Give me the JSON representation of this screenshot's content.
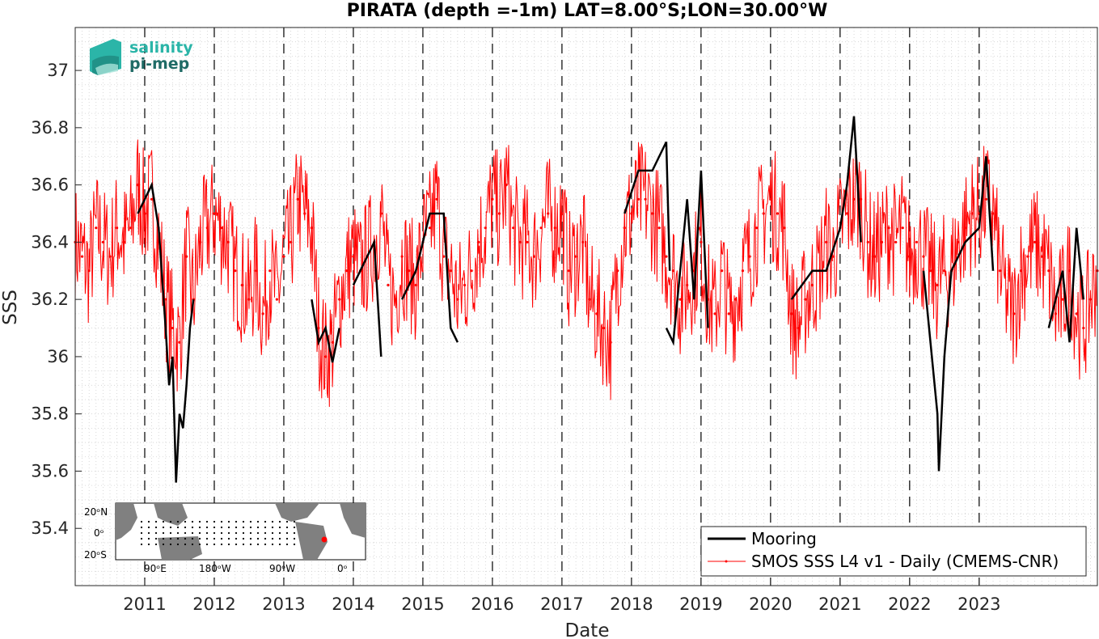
{
  "chart_data": {
    "type": "line",
    "title": "PIRATA (depth =-1m) LAT=8.00°S;LON=30.00°W",
    "xlabel": "Date",
    "ylabel": "SSS",
    "x_tick_labels": [
      "2011",
      "2012",
      "2013",
      "2014",
      "2015",
      "2016",
      "2017",
      "2018",
      "2019",
      "2020",
      "2021",
      "2022",
      "2023"
    ],
    "xlim": [
      2010.0,
      2024.7
    ],
    "y_ticks": [
      35.4,
      35.6,
      35.8,
      36,
      36.2,
      36.4,
      36.6,
      36.8,
      37
    ],
    "ylim": [
      35.2,
      37.15
    ],
    "grid": "minor dotted",
    "year_markers": [
      2011,
      2012,
      2013,
      2014,
      2015,
      2016,
      2017,
      2018,
      2019,
      2020,
      2021,
      2022,
      2023
    ],
    "legend_position": "bottom-right",
    "colors": {
      "mooring": "#000000",
      "smos": "#ff0000",
      "map_land": "#808080"
    },
    "series": [
      {
        "name": "Mooring",
        "color": "#000000",
        "segments": [
          {
            "x": [
              2010.9,
              2011.0,
              2011.1,
              2011.2,
              2011.3,
              2011.35,
              2011.4,
              2011.45,
              2011.5,
              2011.55,
              2011.6,
              2011.65,
              2011.7
            ],
            "y": [
              36.5,
              36.55,
              36.6,
              36.45,
              36.1,
              35.9,
              36.0,
              35.56,
              35.8,
              35.75,
              35.9,
              36.1,
              36.2
            ]
          },
          {
            "x": [
              2013.4,
              2013.5,
              2013.6,
              2013.7,
              2013.8
            ],
            "y": [
              36.2,
              36.05,
              36.1,
              35.98,
              36.1
            ]
          },
          {
            "x": [
              2014.0,
              2014.1,
              2014.2,
              2014.3,
              2014.4
            ],
            "y": [
              36.25,
              36.3,
              36.35,
              36.4,
              36.0
            ]
          },
          {
            "x": [
              2014.7,
              2014.9,
              2015.1,
              2015.3,
              2015.4,
              2015.5
            ],
            "y": [
              36.2,
              36.3,
              36.5,
              36.5,
              36.1,
              36.05
            ]
          },
          {
            "x": [
              2017.9,
              2018.1,
              2018.3,
              2018.5,
              2018.55
            ],
            "y": [
              36.5,
              36.65,
              36.65,
              36.75,
              36.3
            ]
          },
          {
            "x": [
              2018.5,
              2018.6,
              2018.7,
              2018.8,
              2018.9,
              2019.0,
              2019.1
            ],
            "y": [
              36.1,
              36.05,
              36.3,
              36.55,
              36.2,
              36.65,
              36.1
            ]
          },
          {
            "x": [
              2020.3,
              2020.6,
              2020.8,
              2021.0,
              2021.1,
              2021.2,
              2021.3
            ],
            "y": [
              36.2,
              36.3,
              36.3,
              36.45,
              36.6,
              36.84,
              36.4
            ]
          },
          {
            "x": [
              2022.2,
              2022.4,
              2022.42,
              2022.5,
              2022.6,
              2022.8,
              2023.0,
              2023.1,
              2023.2
            ],
            "y": [
              36.3,
              35.8,
              35.6,
              36.0,
              36.3,
              36.4,
              36.45,
              36.7,
              36.3
            ]
          },
          {
            "x": [
              2024.0,
              2024.2,
              2024.3,
              2024.4,
              2024.5
            ],
            "y": [
              36.1,
              36.3,
              36.05,
              36.45,
              36.2
            ]
          }
        ]
      },
      {
        "name": "SMOS SSS L4 v1 - Daily (CMEMS-CNR)",
        "color": "#ff0000",
        "x": [
          2010.0,
          2010.1,
          2010.2,
          2010.3,
          2010.4,
          2010.5,
          2010.6,
          2010.7,
          2010.8,
          2010.9,
          2011.0,
          2011.1,
          2011.2,
          2011.3,
          2011.4,
          2011.5,
          2011.6,
          2011.7,
          2011.8,
          2011.9,
          2012.0,
          2012.1,
          2012.2,
          2012.3,
          2012.4,
          2012.5,
          2012.6,
          2012.7,
          2012.8,
          2012.9,
          2013.0,
          2013.1,
          2013.2,
          2013.3,
          2013.4,
          2013.5,
          2013.6,
          2013.7,
          2013.8,
          2013.9,
          2014.0,
          2014.1,
          2014.2,
          2014.3,
          2014.4,
          2014.5,
          2014.6,
          2014.7,
          2014.8,
          2014.9,
          2015.0,
          2015.1,
          2015.2,
          2015.3,
          2015.4,
          2015.5,
          2015.6,
          2015.7,
          2015.8,
          2015.9,
          2016.0,
          2016.1,
          2016.2,
          2016.3,
          2016.4,
          2016.5,
          2016.6,
          2016.7,
          2016.8,
          2016.9,
          2017.0,
          2017.1,
          2017.2,
          2017.3,
          2017.4,
          2017.5,
          2017.6,
          2017.7,
          2017.8,
          2017.9,
          2018.0,
          2018.1,
          2018.2,
          2018.3,
          2018.4,
          2018.5,
          2018.6,
          2018.7,
          2018.8,
          2018.9,
          2019.0,
          2019.1,
          2019.2,
          2019.3,
          2019.4,
          2019.5,
          2019.6,
          2019.7,
          2019.8,
          2019.9,
          2020.0,
          2020.1,
          2020.2,
          2020.3,
          2020.4,
          2020.5,
          2020.6,
          2020.7,
          2020.8,
          2020.9,
          2021.0,
          2021.1,
          2021.2,
          2021.3,
          2021.4,
          2021.5,
          2021.6,
          2021.7,
          2021.8,
          2021.9,
          2022.0,
          2022.1,
          2022.2,
          2022.3,
          2022.4,
          2022.5,
          2022.6,
          2022.7,
          2022.8,
          2022.9,
          2023.0,
          2023.1,
          2023.2,
          2023.3,
          2023.4,
          2023.5,
          2023.6,
          2023.7,
          2023.8,
          2023.9,
          2024.0,
          2024.1,
          2024.2,
          2024.3,
          2024.4,
          2024.5,
          2024.6,
          2024.7
        ],
        "y": [
          36.4,
          36.35,
          36.3,
          36.45,
          36.4,
          36.35,
          36.45,
          36.4,
          36.45,
          36.6,
          36.5,
          36.55,
          36.4,
          36.2,
          36.1,
          36.05,
          36.35,
          36.2,
          36.4,
          36.45,
          36.5,
          36.45,
          36.4,
          36.3,
          36.25,
          36.2,
          36.3,
          36.15,
          36.3,
          36.2,
          36.35,
          36.4,
          36.55,
          36.5,
          36.45,
          36.1,
          36.0,
          36.05,
          36.2,
          36.3,
          36.35,
          36.3,
          36.35,
          36.4,
          36.5,
          36.25,
          36.2,
          36.35,
          36.3,
          36.25,
          36.4,
          36.45,
          36.55,
          36.35,
          36.3,
          36.2,
          36.25,
          36.3,
          36.4,
          36.45,
          36.55,
          36.5,
          36.6,
          36.45,
          36.4,
          36.4,
          36.35,
          36.45,
          36.5,
          36.45,
          36.5,
          36.3,
          36.35,
          36.4,
          36.2,
          36.15,
          36.1,
          36.05,
          36.3,
          36.45,
          36.5,
          36.55,
          36.55,
          36.5,
          36.45,
          36.35,
          36.3,
          36.2,
          36.25,
          36.3,
          36.4,
          36.2,
          36.15,
          36.3,
          36.15,
          36.2,
          36.3,
          36.35,
          36.45,
          36.5,
          36.55,
          36.5,
          36.45,
          36.15,
          36.1,
          36.2,
          36.25,
          36.3,
          36.4,
          36.35,
          36.45,
          36.5,
          36.55,
          36.55,
          36.4,
          36.35,
          36.4,
          36.45,
          36.4,
          36.45,
          36.35,
          36.4,
          36.35,
          36.3,
          36.25,
          36.3,
          36.3,
          36.4,
          36.45,
          36.5,
          36.5,
          36.55,
          36.5,
          36.3,
          36.2,
          36.15,
          36.3,
          36.35,
          36.4,
          36.35,
          36.3,
          36.15,
          36.2,
          36.3,
          36.15,
          36.1,
          36.2,
          36.3
        ]
      }
    ],
    "inset_map": {
      "lat_labels": [
        "20ᵒN",
        "0ᵒ",
        "20ᵒS"
      ],
      "lon_labels": [
        "90ᵒE",
        "180ᵒW",
        "90ᵒW",
        "0ᵒ"
      ]
    },
    "logo": {
      "line1": "salinity",
      "line2": "pi-mep",
      "color1": "#2bb5a8",
      "color2": "#1f6b66"
    }
  }
}
